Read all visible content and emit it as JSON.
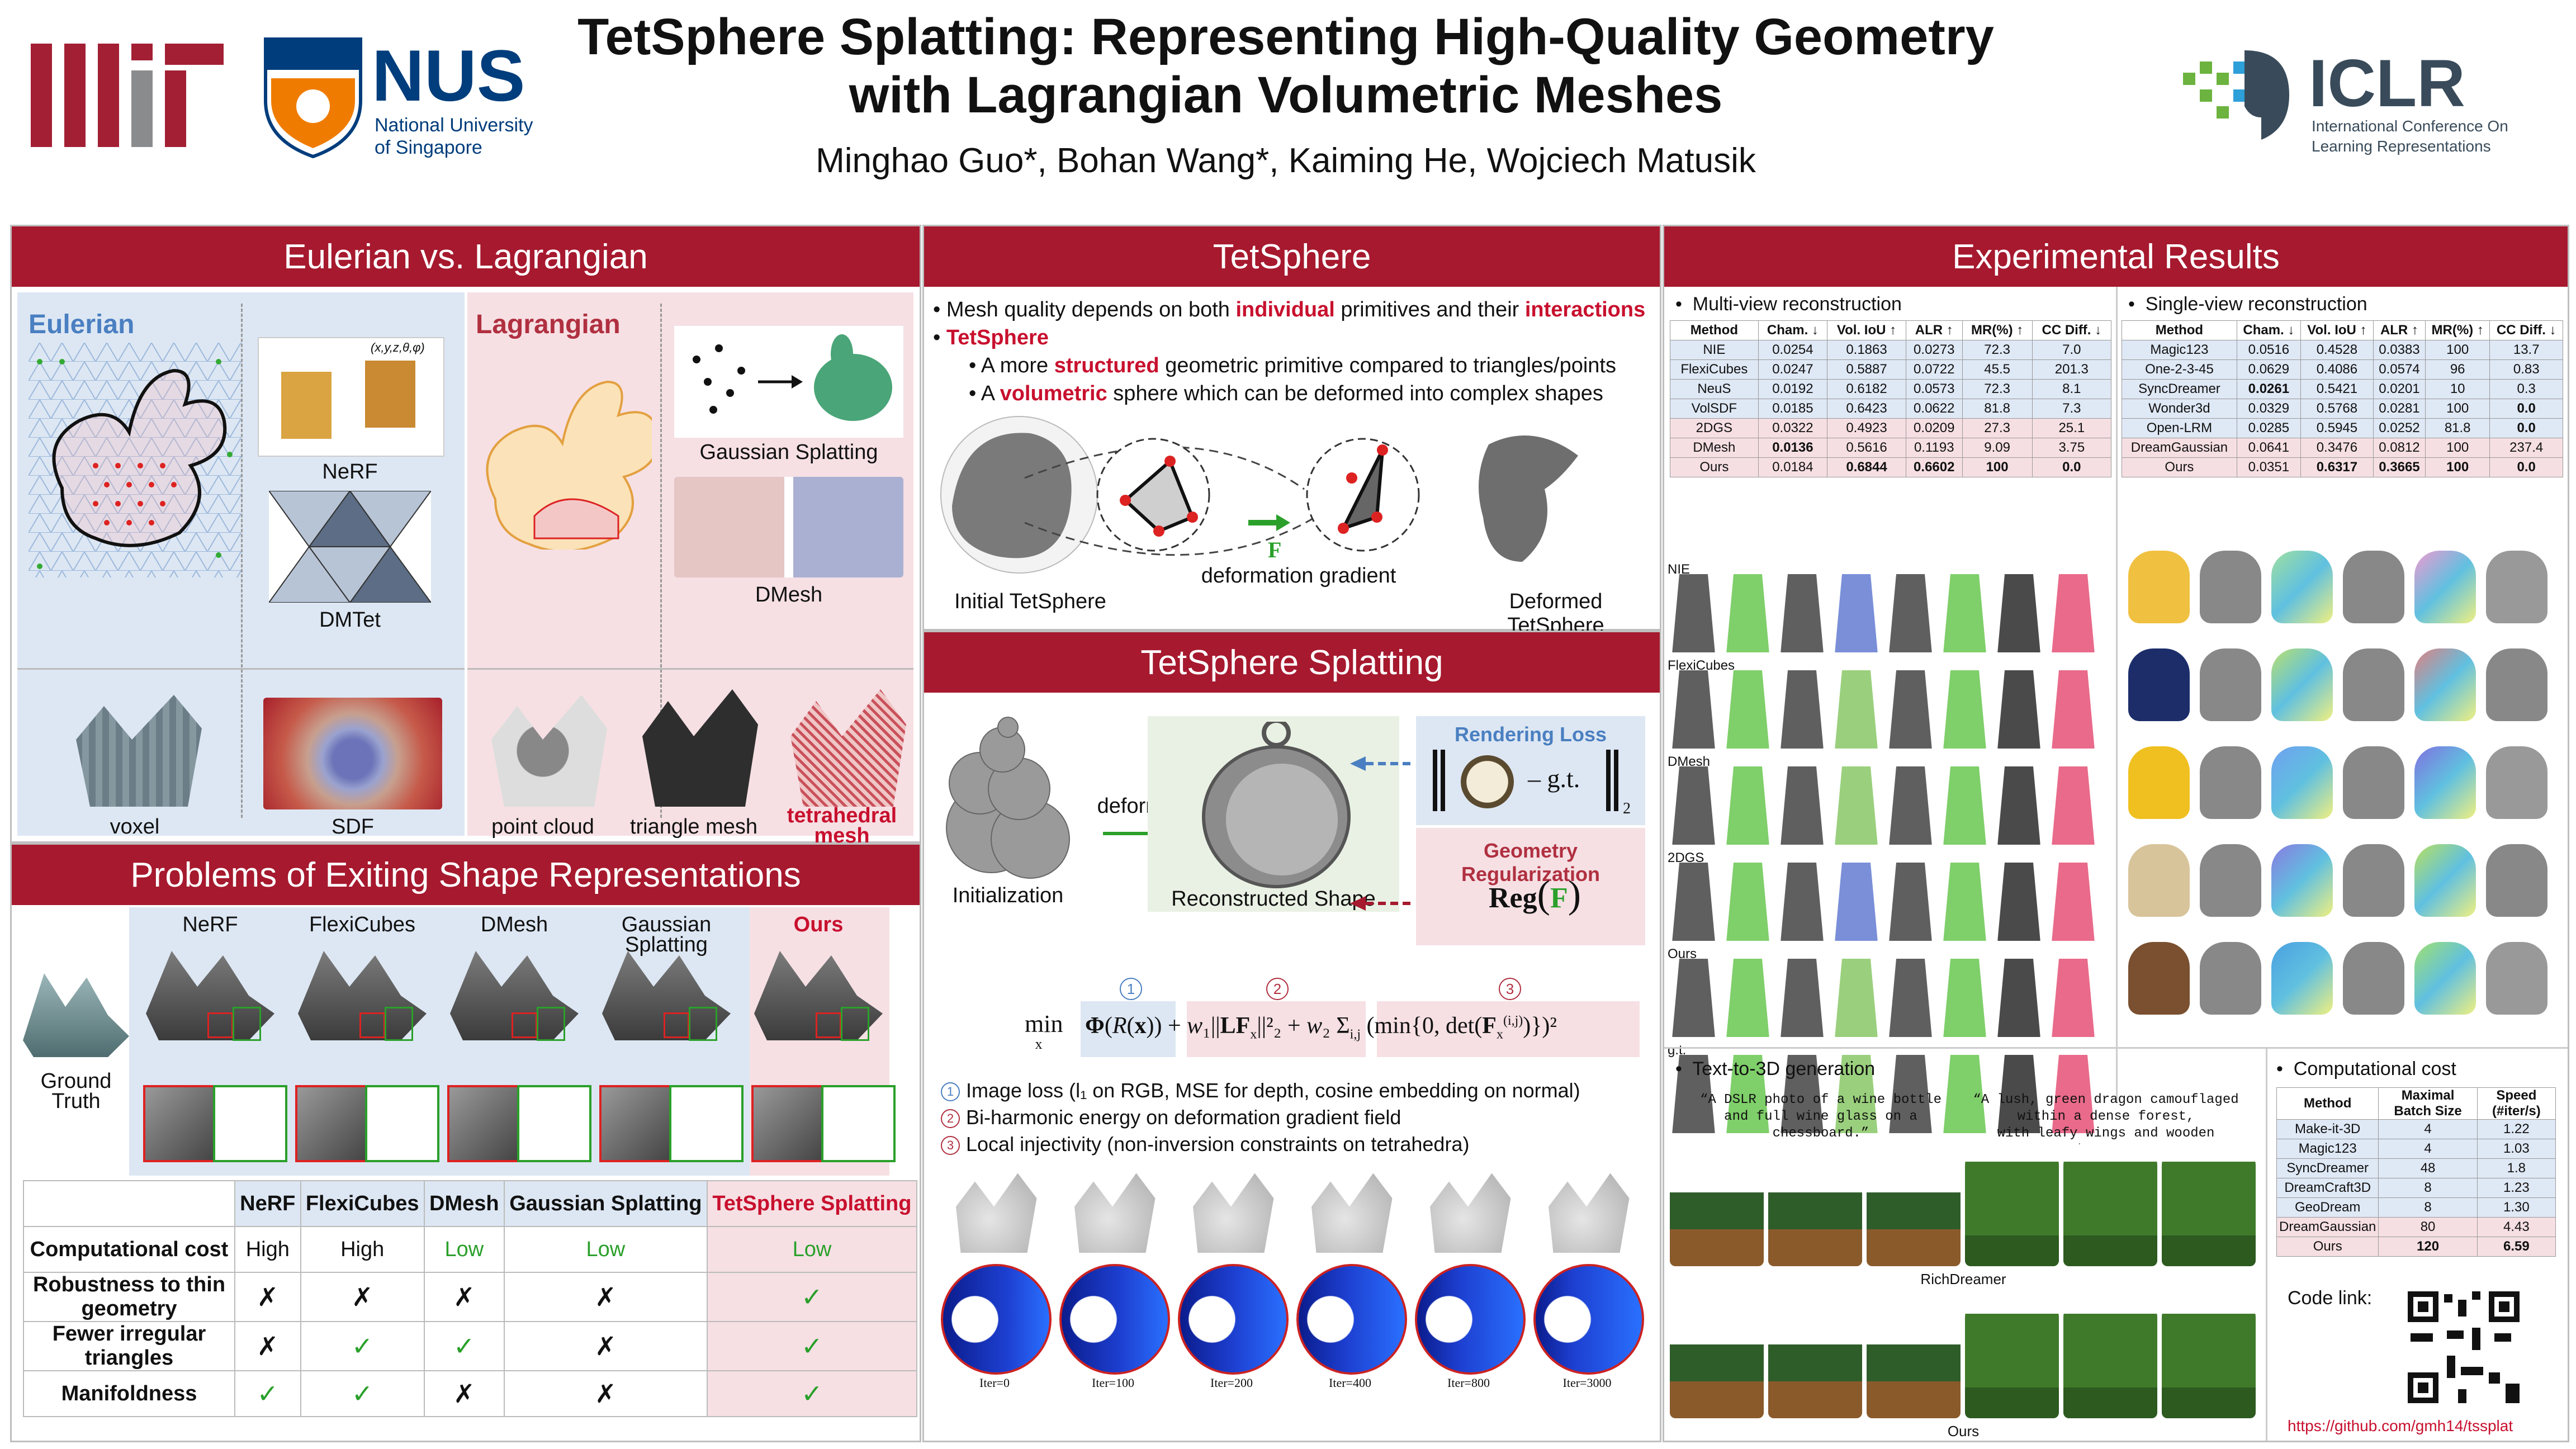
{
  "header": {
    "title_line1": "TetSphere Splatting: Representing High-Quality Geometry",
    "title_line2": "with Lagrangian Volumetric Meshes",
    "authors": "Minghao Guo*, Bohan Wang*, Kaiming He, Wojciech Matusik",
    "nus_name": "NUS",
    "nus_sub1": "National University",
    "nus_sub2": "of Singapore",
    "iclr_name": "ICLR",
    "iclr_sub1": "International Conference On",
    "iclr_sub2": "Learning Representations"
  },
  "colors": {
    "brand_red": "#a6192e",
    "accent_red": "#c8102e",
    "green": "#2aa02a",
    "blue_bg": "#dde7f3",
    "pink_bg": "#f6e0e4"
  },
  "eulerian": {
    "heading": "Eulerian vs. Lagrangian",
    "eulerian_label": "Eulerian",
    "lagrangian_label": "Lagrangian",
    "nerf": "NeRF",
    "nerf_formula": "(x,y,z,θ,φ)",
    "dmtet": "DMTet",
    "gaussian": "Gaussian Splatting",
    "dmesh": "DMesh",
    "voxel": "voxel",
    "sdf": "SDF",
    "pointcloud": "point cloud",
    "trimesh": "triangle mesh",
    "tetmesh_1": "tetrahedral",
    "tetmesh_2": "mesh"
  },
  "problems": {
    "heading": "Problems of Exiting Shape Representations",
    "gt_1": "Ground",
    "gt_2": "Truth",
    "methods": [
      "NeRF",
      "FlexiCubes",
      "DMesh",
      "Gaussian Splatting",
      "Ours"
    ],
    "table_header": [
      "",
      "NeRF",
      "FlexiCubes",
      "DMesh",
      "Gaussian Splatting",
      "TetSphere Splatting"
    ],
    "rows": [
      {
        "label": "Computational cost",
        "cells": [
          "High",
          "High",
          "Low",
          "Low",
          "Low"
        ]
      },
      {
        "label": "Robustness to thin geometry",
        "cells": [
          "✗",
          "✗",
          "✗",
          "✗",
          "✓"
        ]
      },
      {
        "label": "Fewer irregular triangles",
        "cells": [
          "✗",
          "✓",
          "✓",
          "✗",
          "✓"
        ]
      },
      {
        "label": "Manifoldness",
        "cells": [
          "✓",
          "✓",
          "✗",
          "✗",
          "✓"
        ]
      }
    ]
  },
  "tetsphere": {
    "heading": "TetSphere",
    "b1_pre": "Mesh quality depends on both ",
    "b1_k1": "individual",
    "b1_mid": " primitives and their ",
    "b1_k2": "interactions",
    "b2": "TetSphere",
    "b3_pre": "A more ",
    "b3_k": "structured",
    "b3_post": " geometric primitive compared to triangles/points",
    "b4_pre": "A ",
    "b4_k": "volumetric",
    "b4_post": " sphere which can be deformed into complex shapes",
    "initial": "Initial TetSphere",
    "deformed": "Deformed TetSphere",
    "F": "F",
    "grad": "deformation gradient"
  },
  "splatting": {
    "heading": "TetSphere Splatting",
    "deformation": "deformation",
    "init": "Initialization",
    "recon": "Reconstructed Shape",
    "render_loss": "Rendering Loss",
    "geo_reg": "Geometry Regularization",
    "gt": "g.t.",
    "reg": "Reg",
    "nums": [
      "1",
      "2",
      "3"
    ],
    "items": [
      "Image loss (l₁ on RGB,  MSE for depth, cosine embedding on normal)",
      "Bi-harmonic energy on deformation gradient field",
      "Local injectivity (non-inversion constraints on tetrahedra)"
    ],
    "iters": [
      "Iter=0",
      "Iter=100",
      "Iter=200",
      "Iter=400",
      "Iter=800",
      "Iter=3000"
    ]
  },
  "results": {
    "heading": "Experimental Results",
    "mv_title": "Multi-view  reconstruction",
    "mv_header": [
      "Method",
      "Cham. ↓",
      "Vol. IoU ↑",
      "ALR ↑",
      "MR(%) ↑",
      "CC Diff. ↓"
    ],
    "mv_rows": [
      [
        "NIE",
        "0.0254",
        "0.1863",
        "0.0273",
        "72.3",
        "7.0"
      ],
      [
        "FlexiCubes",
        "0.0247",
        "0.5887",
        "0.0722",
        "45.5",
        "201.3"
      ],
      [
        "NeuS",
        "0.0192",
        "0.6182",
        "0.0573",
        "72.3",
        "8.1"
      ],
      [
        "VolSDF",
        "0.0185",
        "0.6423",
        "0.0622",
        "81.8",
        "7.3"
      ],
      [
        "2DGS",
        "0.0322",
        "0.4923",
        "0.0209",
        "27.3",
        "25.1"
      ],
      [
        "DMesh",
        "0.0136",
        "0.5616",
        "0.1193",
        "9.09",
        "3.75"
      ],
      [
        "Ours",
        "0.0184",
        "0.6844",
        "0.6602",
        "100",
        "0.0"
      ]
    ],
    "sv_title": "Single-view  reconstruction",
    "sv_header": [
      "Method",
      "Cham. ↓",
      "Vol. IoU ↑",
      "ALR ↑",
      "MR(%) ↑",
      "CC Diff. ↓"
    ],
    "sv_rows": [
      [
        "Magic123",
        "0.0516",
        "0.4528",
        "0.0383",
        "100",
        "13.7"
      ],
      [
        "One-2-3-45",
        "0.0629",
        "0.4086",
        "0.0574",
        "96",
        "0.83"
      ],
      [
        "SyncDreamer",
        "0.0261",
        "0.5421",
        "0.0201",
        "10",
        "0.3"
      ],
      [
        "Wonder3d",
        "0.0329",
        "0.5768",
        "0.0281",
        "100",
        "0.0"
      ],
      [
        "Open-LRM",
        "0.0285",
        "0.5945",
        "0.0252",
        "81.8",
        "0.0"
      ],
      [
        "DreamGaussian",
        "0.0641",
        "0.3476",
        "0.0812",
        "100",
        "237.4"
      ],
      [
        "Ours",
        "0.0351",
        "0.6317",
        "0.3665",
        "100",
        "0.0"
      ]
    ],
    "mv_labels": [
      "NIE",
      "FlexiCubes",
      "DMesh",
      "2DGS",
      "Ours",
      "g.t."
    ],
    "t3d_title": "Text-to-3D  generation",
    "prompt1_a": "“A DSLR photo of a wine bottle",
    "prompt1_b": "and full wine glass on a chessboard.”",
    "prompt2_a": "“A lush, green dragon camouflaged",
    "prompt2_b": "within a dense forest,",
    "prompt2_c": "with leafy wings and wooden horns.”",
    "richdreamer": "RichDreamer",
    "ours": "Ours",
    "cost_title": "Computational cost",
    "cost_header": [
      "Method",
      "Maximal Batch Size",
      "Speed (#iter/s)"
    ],
    "cost_rows": [
      [
        "Make-it-3D",
        "4",
        "1.22"
      ],
      [
        "Magic123",
        "4",
        "1.03"
      ],
      [
        "SyncDreamer",
        "48",
        "1.8"
      ],
      [
        "DreamCraft3D",
        "8",
        "1.23"
      ],
      [
        "GeoDream",
        "8",
        "1.30"
      ],
      [
        "DreamGaussian",
        "80",
        "4.43"
      ],
      [
        "Ours",
        "120",
        "6.59"
      ]
    ],
    "code_link": "Code link:",
    "url": "https://github.com/gmh14/tssplat"
  }
}
